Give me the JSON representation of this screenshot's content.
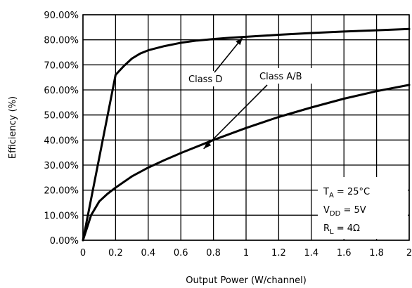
{
  "chart_data": {
    "type": "line",
    "title": "",
    "xlabel": "Output Power (W/channel)",
    "ylabel": "Efficiency (%)",
    "xlim": [
      0,
      2
    ],
    "ylim": [
      0,
      90
    ],
    "x_ticks": [
      0,
      0.2,
      0.4,
      0.6,
      0.8,
      1,
      1.2,
      1.4,
      1.6,
      1.8,
      2
    ],
    "x_tick_labels": [
      "0",
      "0.2",
      "0.4",
      "0.6",
      "0.8",
      "1",
      "1.2",
      "1.4",
      "1.6",
      "1.8",
      "2"
    ],
    "y_ticks": [
      0,
      10,
      20,
      30,
      40,
      50,
      60,
      70,
      80,
      90
    ],
    "y_tick_labels": [
      "0.00%",
      "10.00%",
      "20.00%",
      "30.00%",
      "40.00%",
      "50.00%",
      "60.00%",
      "70.00%",
      "80.00%",
      "90.00%"
    ],
    "grid": true,
    "series": [
      {
        "name": "Class D",
        "x": [
          0,
          0.2,
          0.25,
          0.3,
          0.35,
          0.4,
          0.5,
          0.6,
          0.7,
          0.8,
          0.9,
          1.0,
          1.2,
          1.4,
          1.6,
          1.8,
          2.0
        ],
        "y": [
          0,
          66,
          69.5,
          72.5,
          74.5,
          75.8,
          77.5,
          78.8,
          79.7,
          80.3,
          80.8,
          81.2,
          82.0,
          82.7,
          83.3,
          83.8,
          84.3
        ]
      },
      {
        "name": "Class A/B",
        "x": [
          0,
          0.05,
          0.1,
          0.15,
          0.2,
          0.3,
          0.4,
          0.5,
          0.6,
          0.8,
          1.0,
          1.2,
          1.4,
          1.6,
          1.8,
          2.0
        ],
        "y": [
          0,
          10,
          15.5,
          18.5,
          21,
          25.5,
          29,
          32,
          34.8,
          40,
          44.8,
          49.2,
          53,
          56.5,
          59.5,
          62
        ]
      }
    ],
    "annotations": [
      {
        "text": "Class D",
        "arrow_to": [
          0.98,
          81.0
        ]
      },
      {
        "text": "Class A/B",
        "arrow_to": [
          0.74,
          36.5
        ]
      }
    ],
    "conditions": {
      "ta": {
        "main": "T",
        "sub": "A",
        "rest": " = 25°C"
      },
      "vdd": {
        "main": "V",
        "sub": "DD",
        "rest": " = 5V"
      },
      "rl": {
        "main": "R",
        "sub": "L",
        "rest": " = 4Ω"
      }
    }
  }
}
